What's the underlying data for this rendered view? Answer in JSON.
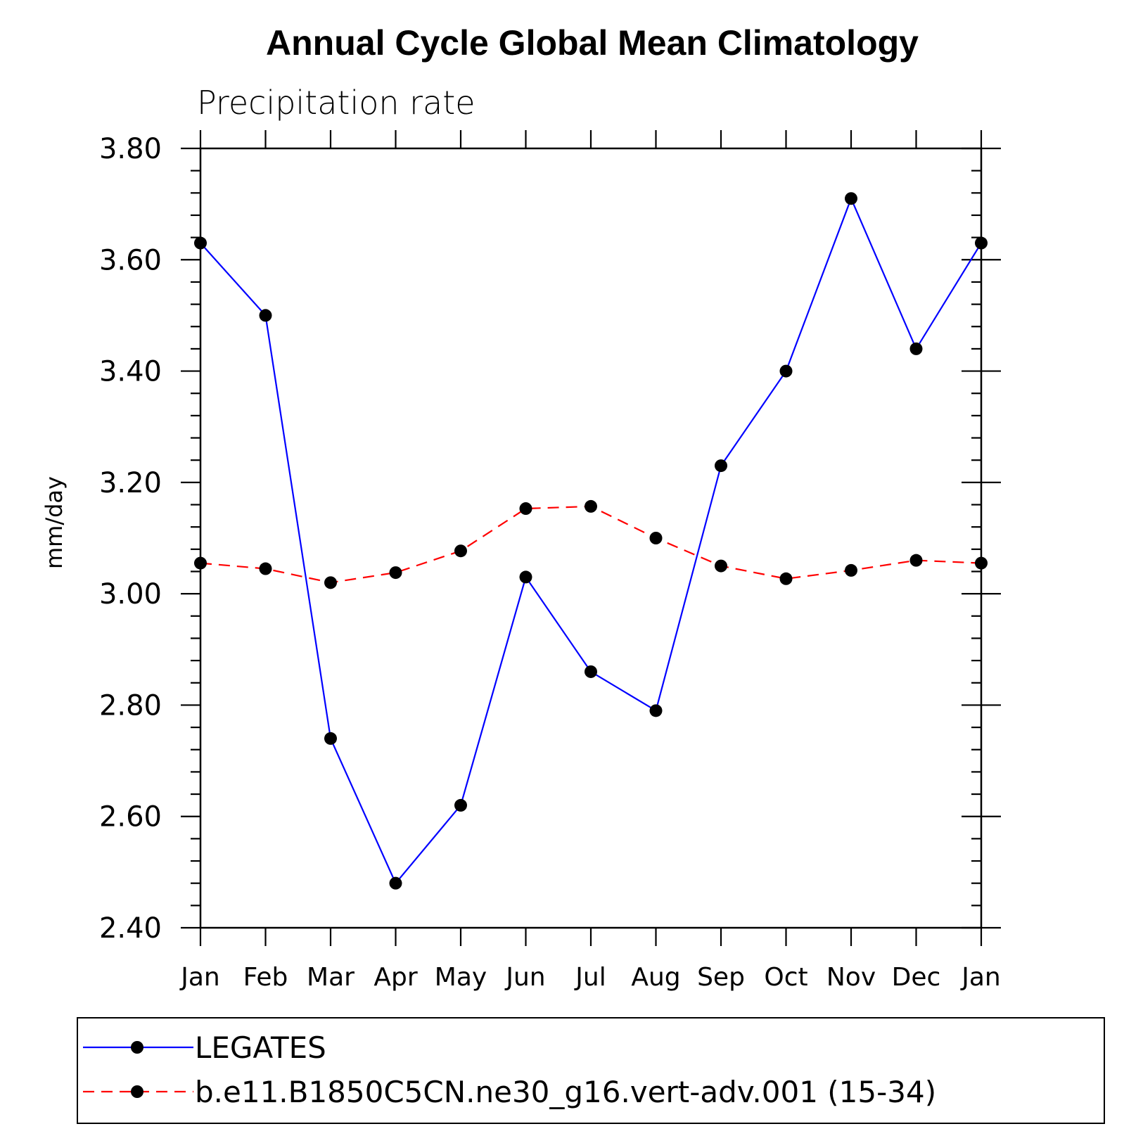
{
  "chart_data": {
    "type": "line",
    "title": "Annual Cycle Global Mean Climatology",
    "subtitle": "Precipitation rate",
    "xlabel": "",
    "ylabel": "mm/day",
    "ylim": [
      2.4,
      3.8
    ],
    "yticks": [
      "2.40",
      "2.60",
      "2.80",
      "3.00",
      "3.20",
      "3.40",
      "3.60",
      "3.80"
    ],
    "categories": [
      "Jan",
      "Feb",
      "Mar",
      "Apr",
      "May",
      "Jun",
      "Jul",
      "Aug",
      "Sep",
      "Oct",
      "Nov",
      "Dec",
      "Jan"
    ],
    "grid": false,
    "legend_position": "bottom",
    "series": [
      {
        "name": "LEGATES",
        "color": "#0000ff",
        "line_style": "solid",
        "marker": "filled-circle",
        "values": [
          3.63,
          3.5,
          2.74,
          2.48,
          2.62,
          3.03,
          2.86,
          2.79,
          3.23,
          3.4,
          3.71,
          3.44,
          3.63
        ]
      },
      {
        "name": "b.e11.B1850C5CN.ne30_g16.vert-adv.001 (15-34)",
        "color": "#ff0000",
        "line_style": "dashed",
        "marker": "filled-circle",
        "values": [
          3.055,
          3.045,
          3.02,
          3.038,
          3.077,
          3.153,
          3.157,
          3.1,
          3.05,
          3.027,
          3.042,
          3.06,
          3.055
        ]
      }
    ]
  }
}
